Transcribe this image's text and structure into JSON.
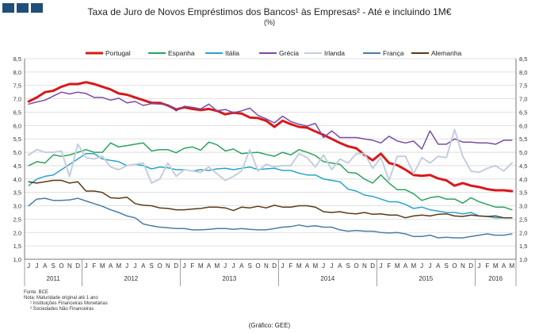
{
  "header": {
    "title": "Taxa de Juro de Novos Empréstimos dos Bancos¹ às Empresas² - Até e incluindo 1M€",
    "subtitle": "(%)"
  },
  "chart_data": {
    "type": "line",
    "ylim": [
      1.0,
      8.5
    ],
    "yticks": [
      "1,0",
      "1,5",
      "2,0",
      "2,5",
      "3,0",
      "3,5",
      "4,0",
      "4,5",
      "5,0",
      "5,5",
      "6,0",
      "6,5",
      "7,0",
      "7,5",
      "8,0",
      "8,5"
    ],
    "grid": "horizontal",
    "legend": "top",
    "month_labels": [
      "J",
      "J",
      "A",
      "S",
      "O",
      "N",
      "D",
      "J",
      "F",
      "M",
      "A",
      "M",
      "J",
      "J",
      "A",
      "S",
      "O",
      "N",
      "D",
      "J",
      "F",
      "M",
      "A",
      "M",
      "J",
      "J",
      "A",
      "S",
      "O",
      "N",
      "D",
      "J",
      "F",
      "M",
      "A",
      "M",
      "J",
      "J",
      "A",
      "S",
      "O",
      "N",
      "D",
      "J",
      "F",
      "M",
      "A",
      "M",
      "J",
      "J",
      "A",
      "S",
      "O",
      "N",
      "D",
      "J",
      "F",
      "M",
      "A",
      "M"
    ],
    "years": [
      {
        "label": "2011",
        "start": 0,
        "count": 7
      },
      {
        "label": "2012",
        "start": 7,
        "count": 12
      },
      {
        "label": "2013",
        "start": 19,
        "count": 12
      },
      {
        "label": "2014",
        "start": 31,
        "count": 12
      },
      {
        "label": "2015",
        "start": 43,
        "count": 12
      },
      {
        "label": "2016",
        "start": 55,
        "count": 5
      }
    ],
    "series": [
      {
        "name": "Portugal",
        "color": "#d7191c",
        "width": 3,
        "values": [
          6.9,
          7.05,
          7.25,
          7.3,
          7.45,
          7.55,
          7.55,
          7.62,
          7.55,
          7.45,
          7.35,
          7.2,
          7.15,
          7.05,
          6.95,
          6.85,
          6.85,
          6.75,
          6.6,
          6.68,
          6.62,
          6.58,
          6.62,
          6.55,
          6.42,
          6.48,
          6.45,
          6.3,
          6.28,
          6.18,
          5.95,
          6.18,
          6.05,
          5.95,
          5.92,
          5.78,
          5.65,
          5.5,
          5.35,
          5.22,
          5.15,
          4.9,
          4.7,
          4.95,
          4.6,
          4.52,
          4.35,
          4.15,
          4.12,
          4.15,
          4.02,
          3.95,
          3.75,
          3.85,
          3.75,
          3.7,
          3.62,
          3.58,
          3.58,
          3.55
        ]
      },
      {
        "name": "Espanha",
        "color": "#2ca25f",
        "width": 1.5,
        "values": [
          4.5,
          4.65,
          4.6,
          4.9,
          4.85,
          4.9,
          5.0,
          5.1,
          5.0,
          5.0,
          5.35,
          5.2,
          5.25,
          5.3,
          5.35,
          5.05,
          5.1,
          5.1,
          4.98,
          5.15,
          5.2,
          5.08,
          5.38,
          5.28,
          5.05,
          5.12,
          4.95,
          4.98,
          5.0,
          4.92,
          4.85,
          5.0,
          4.9,
          5.1,
          5.0,
          4.88,
          4.65,
          4.6,
          4.55,
          4.25,
          4.22,
          4.0,
          3.85,
          4.15,
          3.85,
          3.6,
          3.6,
          3.45,
          3.2,
          3.3,
          3.35,
          3.25,
          3.25,
          3.1,
          3.3,
          3.15,
          3.05,
          2.95,
          2.95,
          2.85
        ]
      },
      {
        "name": "Itália",
        "color": "#2aa4c9",
        "width": 1.5,
        "values": [
          3.75,
          4.0,
          4.1,
          4.15,
          4.35,
          4.55,
          4.75,
          4.95,
          4.95,
          4.75,
          4.7,
          4.65,
          4.5,
          4.55,
          4.5,
          4.38,
          4.45,
          4.42,
          4.35,
          4.35,
          4.3,
          4.35,
          4.32,
          4.38,
          4.4,
          4.35,
          4.4,
          4.45,
          4.35,
          4.38,
          4.4,
          4.32,
          4.32,
          4.22,
          4.15,
          4.15,
          4.0,
          3.95,
          3.9,
          3.62,
          3.55,
          3.4,
          3.35,
          3.25,
          3.15,
          3.15,
          3.05,
          2.9,
          2.95,
          2.85,
          2.8,
          2.75,
          2.75,
          2.7,
          2.75,
          2.62,
          2.6,
          2.55,
          2.55,
          2.55
        ]
      },
      {
        "name": "Grécia",
        "color": "#7b4ba3",
        "width": 1.5,
        "values": [
          6.8,
          6.88,
          6.95,
          7.1,
          7.25,
          7.18,
          7.25,
          7.2,
          7.05,
          7.05,
          6.95,
          7.02,
          6.85,
          6.9,
          6.75,
          6.82,
          6.8,
          6.78,
          6.55,
          6.72,
          6.68,
          6.62,
          6.8,
          6.55,
          6.6,
          6.48,
          6.55,
          6.65,
          6.38,
          6.25,
          6.1,
          6.35,
          6.15,
          6.05,
          5.98,
          6.08,
          5.55,
          5.8,
          5.55,
          5.55,
          5.55,
          5.5,
          5.45,
          5.35,
          5.6,
          5.42,
          5.35,
          5.42,
          5.12,
          5.8,
          5.3,
          5.3,
          5.5,
          5.38,
          5.38,
          5.35,
          5.35,
          5.3,
          5.45,
          5.45
        ]
      },
      {
        "name": "Irlanda",
        "color": "#c4cedc",
        "width": 2,
        "values": [
          4.9,
          5.1,
          5.0,
          5.0,
          5.05,
          4.1,
          5.3,
          4.8,
          4.75,
          4.85,
          4.45,
          4.35,
          4.5,
          4.55,
          4.6,
          3.85,
          4.0,
          4.6,
          4.1,
          4.35,
          4.3,
          4.25,
          4.45,
          4.2,
          3.95,
          4.1,
          4.3,
          5.1,
          4.3,
          4.55,
          4.45,
          4.5,
          4.5,
          4.95,
          4.8,
          4.45,
          4.9,
          4.35,
          4.75,
          4.6,
          4.95,
          4.95,
          4.4,
          4.8,
          3.95,
          4.85,
          4.85,
          4.2,
          4.8,
          4.6,
          4.85,
          4.8,
          5.85,
          4.85,
          4.3,
          4.25,
          4.4,
          4.5,
          4.3,
          4.6
        ]
      },
      {
        "name": "França",
        "color": "#4a7da6",
        "width": 1.5,
        "values": [
          3.0,
          3.25,
          3.28,
          3.2,
          3.2,
          3.22,
          3.28,
          3.18,
          3.08,
          2.98,
          2.85,
          2.75,
          2.62,
          2.55,
          2.32,
          2.25,
          2.2,
          2.18,
          2.15,
          2.15,
          2.1,
          2.1,
          2.12,
          2.15,
          2.15,
          2.12,
          2.15,
          2.12,
          2.1,
          2.1,
          2.15,
          2.2,
          2.22,
          2.28,
          2.22,
          2.25,
          2.2,
          2.2,
          2.1,
          2.05,
          2.08,
          2.05,
          2.05,
          2.0,
          1.98,
          2.0,
          1.95,
          1.85,
          1.85,
          1.9,
          1.8,
          1.82,
          1.8,
          1.8,
          1.85,
          1.9,
          1.95,
          1.9,
          1.9,
          1.95
        ]
      },
      {
        "name": "Alemanha",
        "color": "#5a3a1a",
        "width": 1.5,
        "values": [
          3.9,
          3.85,
          3.9,
          3.95,
          3.95,
          3.85,
          3.9,
          3.55,
          3.55,
          3.5,
          3.3,
          3.28,
          3.32,
          3.08,
          3.02,
          3.0,
          2.92,
          2.9,
          2.85,
          2.85,
          2.88,
          2.9,
          2.95,
          2.95,
          2.92,
          2.82,
          2.95,
          2.92,
          2.98,
          2.92,
          3.02,
          2.95,
          2.95,
          3.0,
          3.0,
          2.95,
          2.78,
          2.75,
          2.78,
          2.72,
          2.7,
          2.75,
          2.68,
          2.7,
          2.65,
          2.65,
          2.55,
          2.62,
          2.65,
          2.62,
          2.68,
          2.7,
          2.62,
          2.6,
          2.65,
          2.62,
          2.6,
          2.62,
          2.55,
          2.55
        ]
      }
    ]
  },
  "notes": {
    "source": "Fonte: BCE",
    "note": "Nota: Maturidade original até 1 ano",
    "fn1": "¹ Instituições Financeiras Monetárias",
    "fn2": "² Sociedades Não Financeiras"
  },
  "credit": "(Gráfico: GEE)"
}
